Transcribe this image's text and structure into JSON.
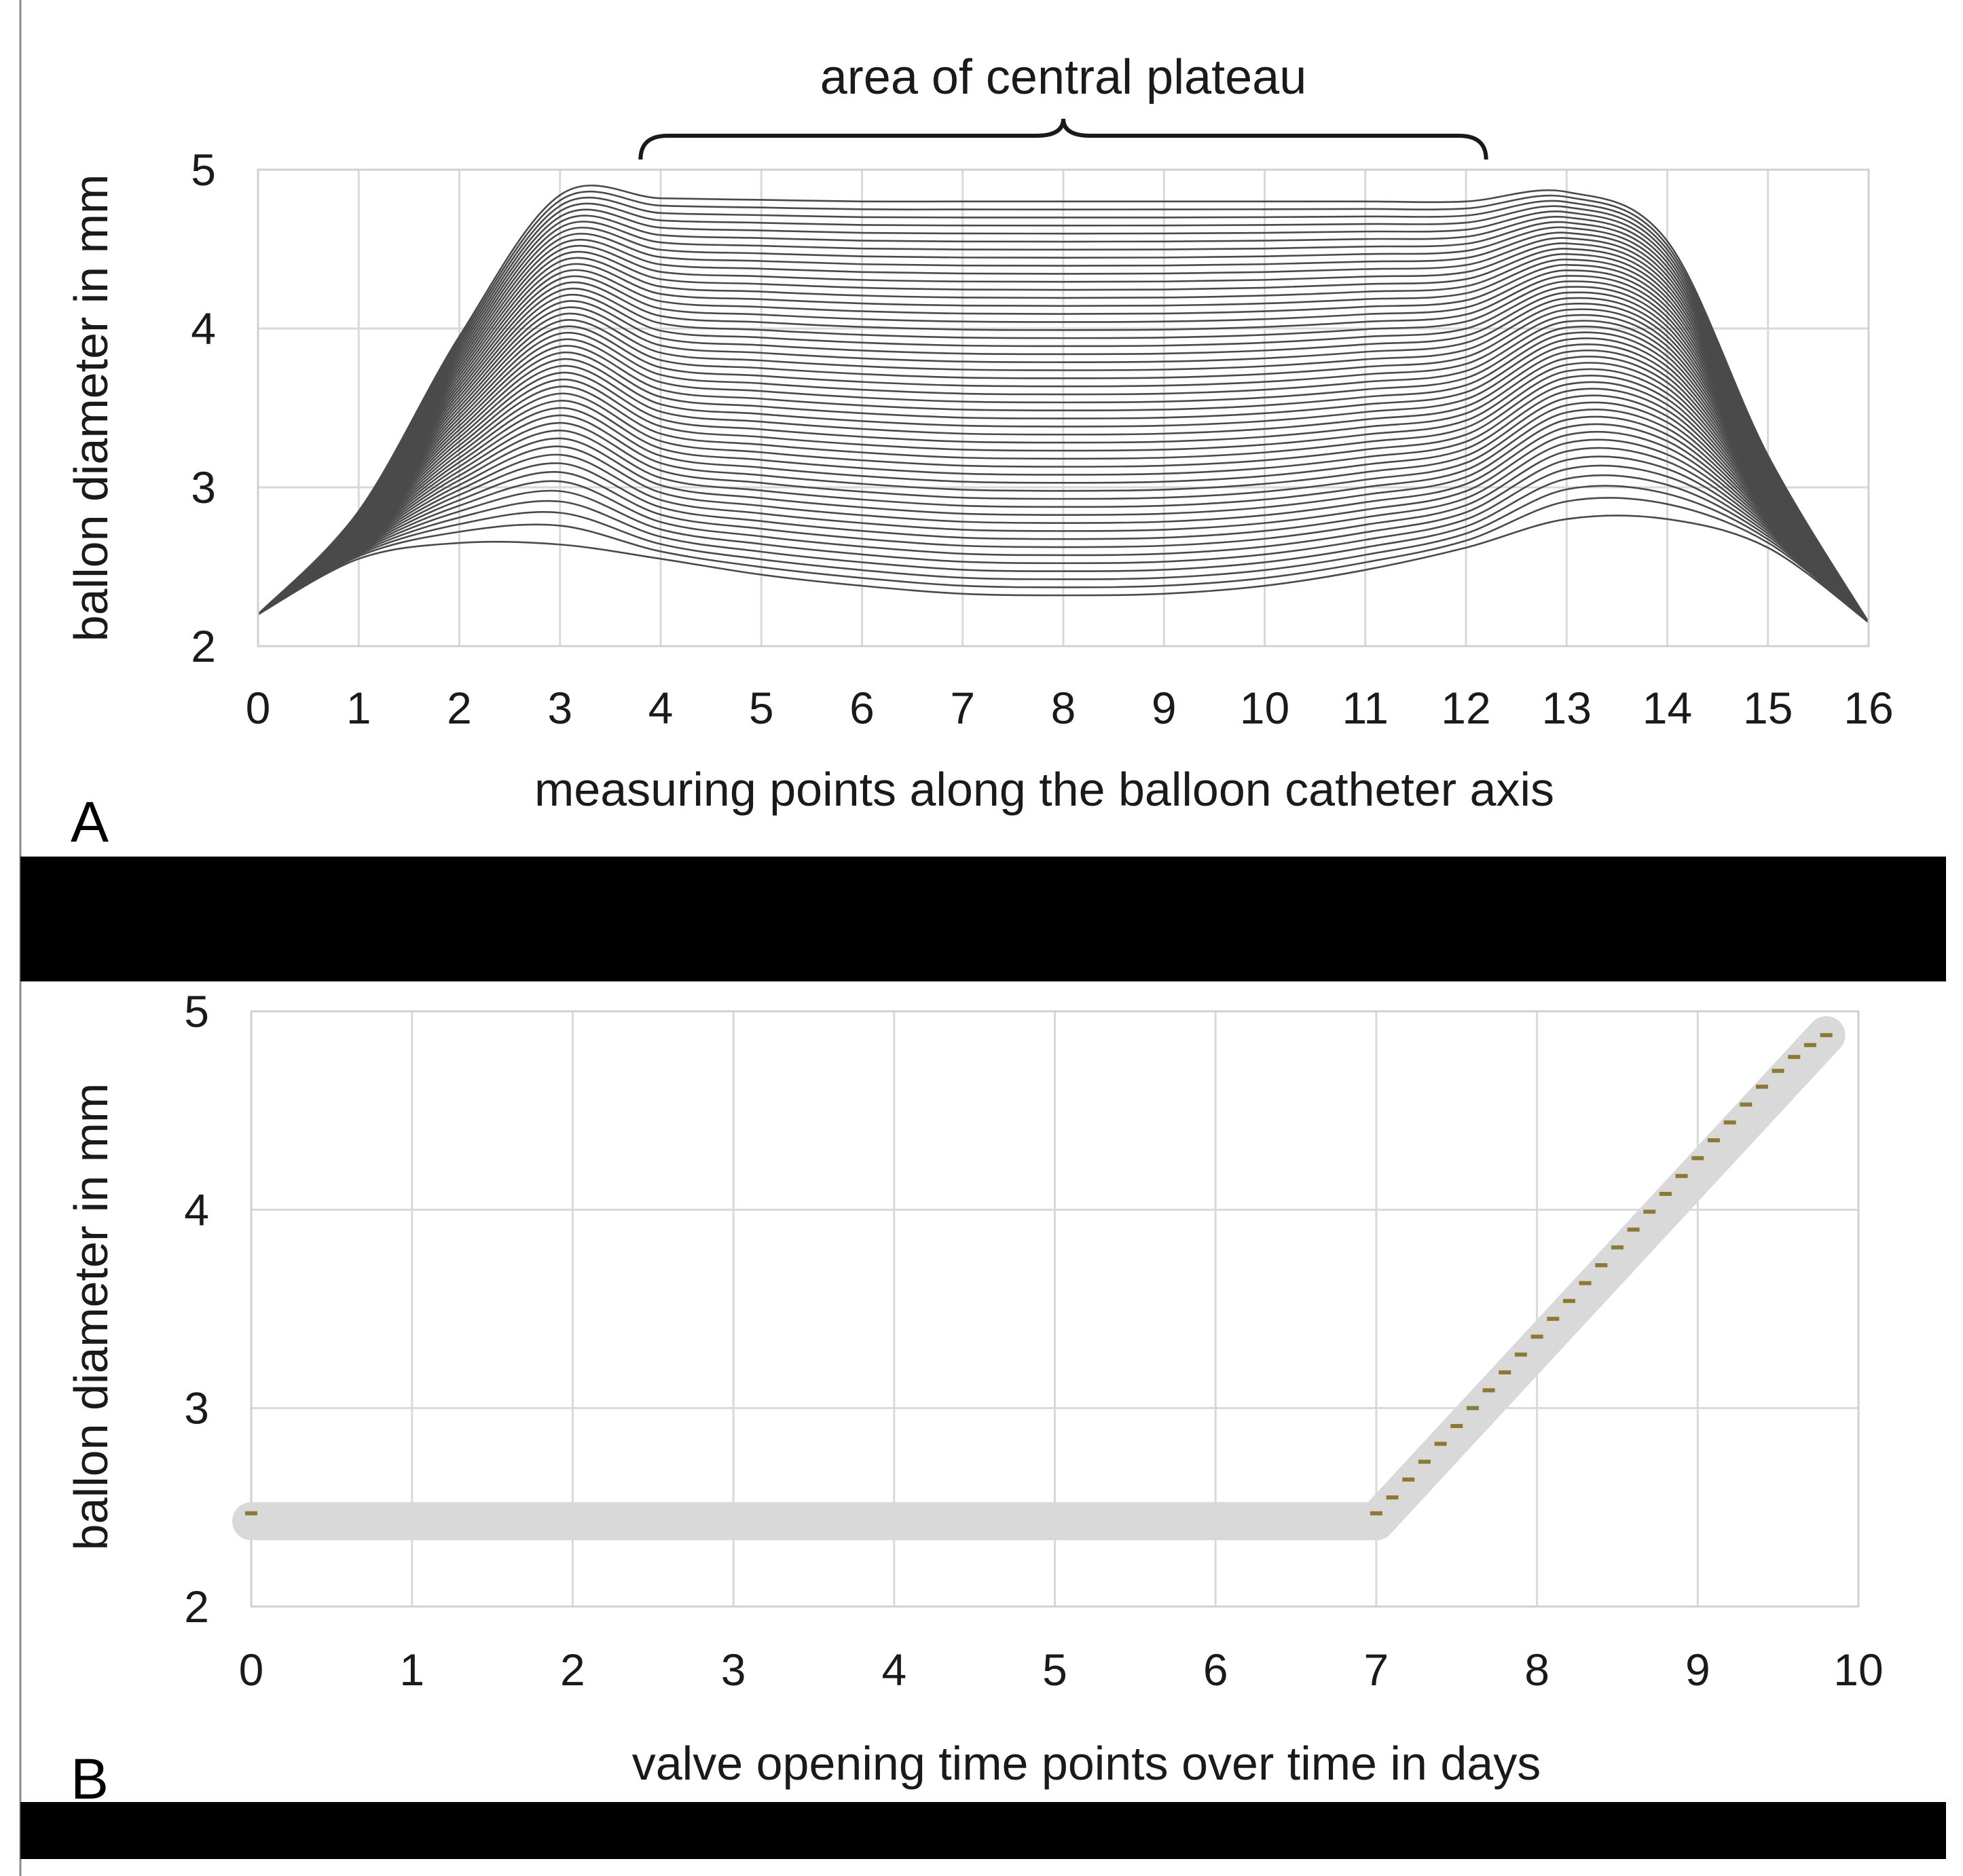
{
  "figure": {
    "colors": {
      "gridline": "#d9d9d9",
      "curve_line": "#4a4a4a",
      "marker_band": "#d9d9d9",
      "marker_dash": "#8b7a35",
      "separator": "#000000"
    }
  },
  "chart_data": [
    {
      "panel_label": "A",
      "type": "line",
      "title": "",
      "annotation": "area of central plateau",
      "annotation_range": [
        3.8,
        12.2
      ],
      "xlabel": "measuring points along the balloon catheter axis",
      "ylabel": "ballon diameter in mm",
      "xlim": [
        0,
        16
      ],
      "ylim": [
        2,
        5
      ],
      "xticks": [
        "0",
        "1",
        "2",
        "3",
        "4",
        "5",
        "6",
        "7",
        "8",
        "9",
        "10",
        "11",
        "12",
        "13",
        "14",
        "15",
        "16"
      ],
      "yticks": [
        "2",
        "3",
        "4",
        "5"
      ],
      "grid": true,
      "legend": "none",
      "series_count": 50,
      "x": [
        0,
        1,
        2,
        3,
        4,
        5,
        6,
        7,
        8,
        9,
        10,
        11,
        12,
        13,
        14,
        15,
        16
      ],
      "first_profile": [
        2.2,
        2.55,
        2.65,
        2.64,
        2.55,
        2.45,
        2.38,
        2.33,
        2.32,
        2.33,
        2.38,
        2.48,
        2.62,
        2.8,
        2.8,
        2.62,
        2.15
      ],
      "last_profile": [
        2.2,
        2.85,
        3.95,
        4.84,
        4.82,
        4.81,
        4.8,
        4.8,
        4.8,
        4.8,
        4.8,
        4.8,
        4.8,
        4.86,
        4.55,
        3.2,
        2.15
      ],
      "interpolation": "each series lies between first_profile and last_profile; plateau points (4-12) rise uniformly, shoulder points rise earlier"
    },
    {
      "panel_label": "B",
      "type": "scatter",
      "title": "",
      "xlabel": "valve opening time points over time in days",
      "ylabel": "ballon diameter in mm",
      "xlim": [
        0,
        10
      ],
      "ylim": [
        2,
        5
      ],
      "xticks": [
        "0",
        "1",
        "2",
        "3",
        "4",
        "5",
        "6",
        "7",
        "8",
        "9",
        "10"
      ],
      "yticks": [
        "2",
        "3",
        "4",
        "5"
      ],
      "grid": true,
      "legend": "none",
      "series": [
        {
          "x": [
            0,
            7.0,
            7.1,
            7.2,
            7.3,
            7.4,
            7.5,
            7.6,
            7.7,
            7.8,
            7.9,
            8.0,
            8.1,
            8.2,
            8.3,
            8.4,
            8.5,
            8.6,
            8.7,
            8.8,
            8.9,
            9.0,
            9.1,
            9.2,
            9.3,
            9.4,
            9.5,
            9.6,
            9.7,
            9.8
          ],
          "y": [
            2.47,
            2.47,
            2.55,
            2.64,
            2.73,
            2.82,
            2.91,
            3.0,
            3.09,
            3.18,
            3.27,
            3.36,
            3.45,
            3.54,
            3.63,
            3.72,
            3.81,
            3.9,
            3.99,
            4.08,
            4.17,
            4.26,
            4.35,
            4.44,
            4.53,
            4.62,
            4.7,
            4.77,
            4.83,
            4.88
          ]
        }
      ],
      "band": {
        "x": [
          0,
          7.0,
          9.8
        ],
        "y": [
          2.43,
          2.43,
          4.88
        ]
      }
    }
  ]
}
